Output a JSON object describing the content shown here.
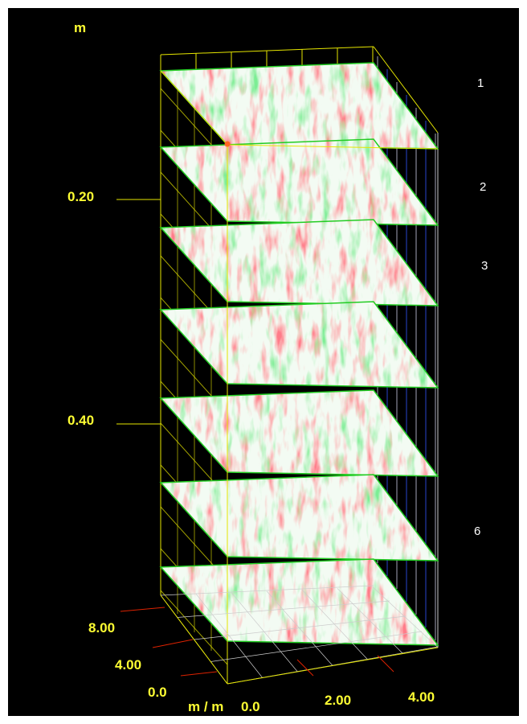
{
  "labels": {
    "vertical_unit": "m",
    "depth_ticks": [
      "0.20",
      "0.40"
    ],
    "y_ticks": [
      "8.00",
      "4.00",
      "0.0"
    ],
    "horizontal_unit": "m / m",
    "x_ticks": [
      "0.0",
      "2.00",
      "4.00"
    ]
  },
  "slices": [
    "1",
    "2",
    "3",
    "6"
  ]
}
